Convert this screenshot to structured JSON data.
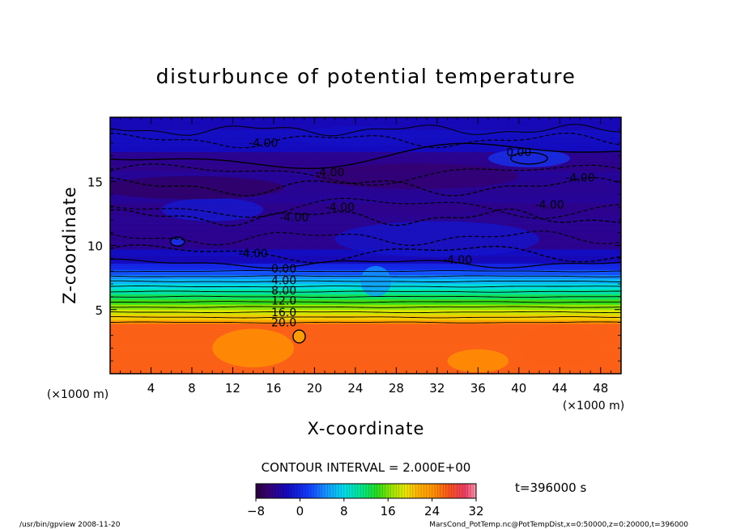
{
  "chart_data": {
    "type": "heatmap",
    "title": "disturbunce of potential temperature",
    "xlabel": "X-coordinate",
    "ylabel": "Z-coordinate",
    "x_unit": "(×1000 m)",
    "z_unit": "(×1000 m)",
    "xlim": [
      0,
      50
    ],
    "zlim": [
      0,
      20
    ],
    "x_ticks": [
      4,
      8,
      12,
      16,
      20,
      24,
      28,
      32,
      36,
      40,
      44,
      48
    ],
    "z_ticks": [
      5,
      10,
      15
    ],
    "contour_interval_text": "CONTOUR INTERVAL = 2.000E+00",
    "time_text": "t=396000 s",
    "colorbar": {
      "min": -8,
      "max": 32,
      "ticks": [
        -8,
        0,
        8,
        16,
        24,
        32
      ]
    },
    "profile": [
      {
        "z": 0.0,
        "value": 25.2
      },
      {
        "z": 3.9,
        "value": 25.0
      },
      {
        "z": 4.2,
        "value": 21.0
      },
      {
        "z": 5.0,
        "value": 17.0
      },
      {
        "z": 6.0,
        "value": 12.0
      },
      {
        "z": 7.0,
        "value": 7.0
      },
      {
        "z": 8.0,
        "value": 1.5
      },
      {
        "z": 8.6,
        "value": -1.0
      },
      {
        "z": 10.0,
        "value": -3.5
      },
      {
        "z": 12.0,
        "value": -3.0
      },
      {
        "z": 14.5,
        "value": -5.0
      },
      {
        "z": 16.5,
        "value": -3.5
      },
      {
        "z": 18.0,
        "value": -2.5
      },
      {
        "z": 20.0,
        "value": -1.5
      }
    ],
    "contour_labels": [
      {
        "x": 15.0,
        "z": 18.0,
        "text": "-4.00"
      },
      {
        "x": 21.5,
        "z": 15.7,
        "text": "-4.00"
      },
      {
        "x": 18.0,
        "z": 12.2,
        "text": "-4.00"
      },
      {
        "x": 22.5,
        "z": 13.0,
        "text": "-4.00"
      },
      {
        "x": 14.0,
        "z": 9.4,
        "text": "-4.00"
      },
      {
        "x": 34.0,
        "z": 8.9,
        "text": "-4.00"
      },
      {
        "x": 40.0,
        "z": 17.3,
        "text": "0.00"
      },
      {
        "x": 46.0,
        "z": 15.3,
        "text": "-4.00"
      },
      {
        "x": 43.0,
        "z": 13.2,
        "text": "-4.00"
      },
      {
        "x": 17.0,
        "z": 8.2,
        "text": "0.00"
      },
      {
        "x": 17.0,
        "z": 7.3,
        "text": "4.00"
      },
      {
        "x": 17.0,
        "z": 6.5,
        "text": "8.00"
      },
      {
        "x": 17.0,
        "z": 5.7,
        "text": "12.0"
      },
      {
        "x": 17.0,
        "z": 4.8,
        "text": "16.0"
      },
      {
        "x": 17.0,
        "z": 4.0,
        "text": "20.0"
      }
    ]
  },
  "footer": {
    "left": "/usr/bin/gpview   2008-11-20",
    "right": "MarsCond_PotTemp.nc@PotTempDist,x=0:50000,z=0:20000,t=396000"
  }
}
